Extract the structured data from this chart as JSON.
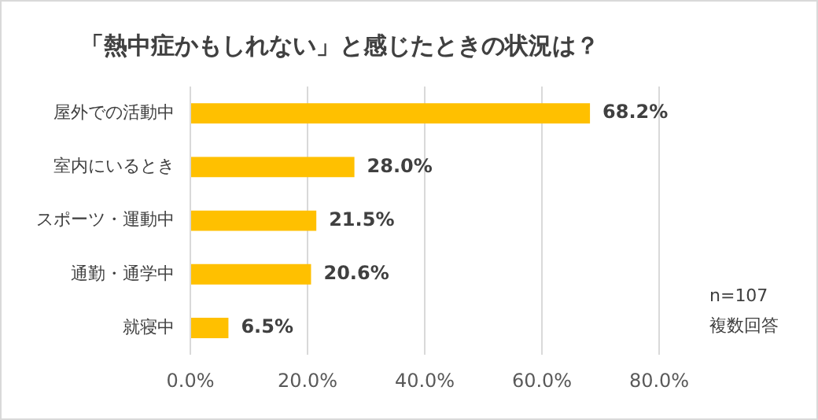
{
  "chart_data": {
    "type": "bar",
    "orientation": "horizontal",
    "title": "「熱中症かもしれない」と感じたときの状況は？",
    "categories": [
      "屋外での活動中",
      "室内にいるとき",
      "スポーツ・運動中",
      "通勤・通学中",
      "就寝中"
    ],
    "values": [
      68.2,
      28.0,
      21.5,
      20.6,
      6.5
    ],
    "color": "#ffc000",
    "value_labels": [
      "68.2%",
      "28.0%",
      "21.5%",
      "20.6%",
      "6.5%"
    ],
    "xlim": [
      0,
      80
    ],
    "xticks": [
      {
        "value": 0,
        "label": "0.0%"
      },
      {
        "value": 20,
        "label": "20.0%"
      },
      {
        "value": 40,
        "label": "40.0%"
      },
      {
        "value": 60,
        "label": "60.0%"
      },
      {
        "value": 80,
        "label": "80.0%"
      }
    ],
    "grid": "x",
    "legend": false,
    "annotations": [
      "n=107",
      "複数回答"
    ]
  }
}
